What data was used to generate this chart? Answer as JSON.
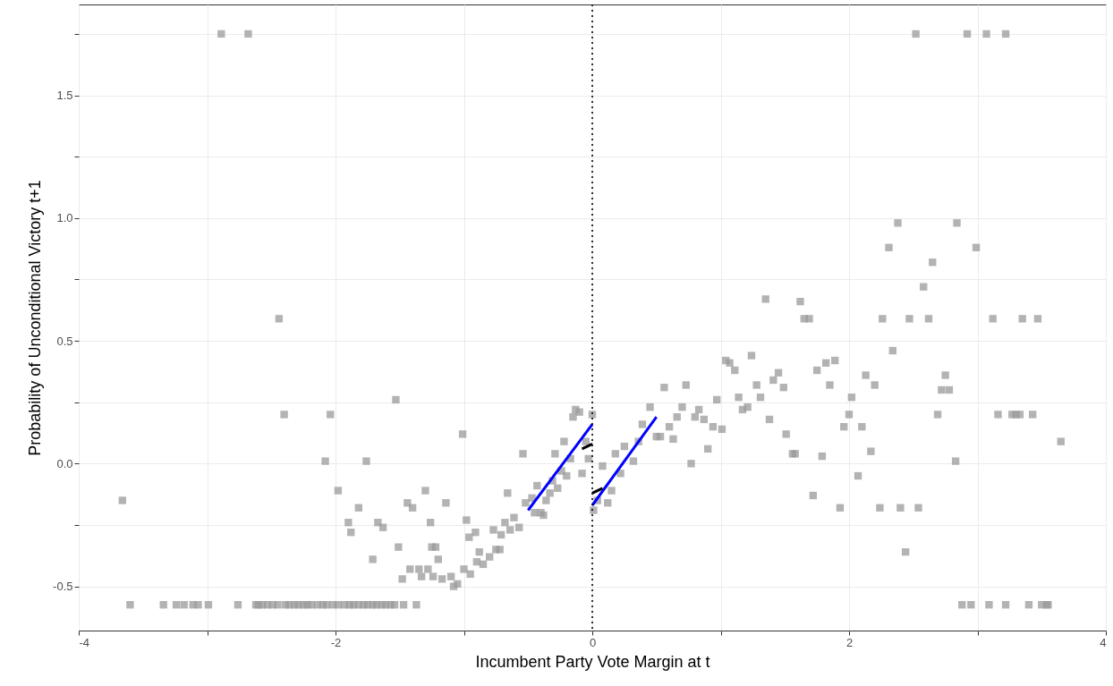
{
  "chart_data": {
    "type": "scatter",
    "xlabel": "Incumbent Party Vote Margin at t",
    "ylabel": "Probability of Unconditional Victory t+1",
    "xlim": [
      -4,
      4
    ],
    "ylim": [
      -0.68,
      1.87
    ],
    "xticks": [
      -4,
      {
        "value": -3,
        "label": null
      },
      -2,
      {
        "value": -1,
        "label": null
      },
      0,
      {
        "value": 1,
        "label": null
      },
      2,
      {
        "value": 3,
        "label": null
      },
      4
    ],
    "yticks": [
      -0.5,
      {
        "value": -0.25,
        "label": null
      },
      {
        "value": 0,
        "label": "0.0"
      },
      {
        "value": 0.25,
        "label": null
      },
      0.5,
      {
        "value": 0.75,
        "label": null
      },
      {
        "value": 1,
        "label": "1.0"
      },
      {
        "value": 1.25,
        "label": null
      },
      1.5,
      {
        "value": 1.75,
        "label": null
      }
    ],
    "grid": true,
    "marker": "square",
    "ref_lines": [
      {
        "axis": "x",
        "value": 0,
        "color": "#000000",
        "line_style": "dotted"
      }
    ],
    "series": [
      {
        "color": "#999999",
        "x": [
          -3.6,
          -3.34,
          -3.24,
          -3.18,
          -3.11,
          -3.07,
          -2.99,
          -2.76,
          -2.62,
          -2.6,
          -2.57,
          -2.53,
          -2.49,
          -2.45,
          -2.39,
          -2.36,
          -2.32,
          -2.29,
          -2.25,
          -2.22,
          -2.19,
          -2.14,
          -2.1,
          -2.07,
          -2.02,
          -1.98,
          -1.93,
          -1.89,
          -1.86,
          -1.82,
          -1.78,
          -1.75,
          -1.71,
          -1.68,
          -1.64,
          -1.61,
          -1.57,
          -1.54,
          -1.47,
          -1.37,
          -2.89,
          -2.68,
          2.52,
          2.92,
          3.07,
          3.22,
          -1.53,
          -2.4,
          -2.04,
          -2.08,
          -1.76,
          -3.66,
          -1.98,
          -1.3,
          -1.82,
          -1.44,
          -1.4,
          -1.9,
          -1.67,
          -1.63,
          -1.26,
          -1.88,
          -1.51,
          -1.71,
          -1.35,
          -1.42,
          -1.28,
          -1.48,
          -1.33,
          -1.24,
          -1.22,
          -2.44,
          -1.17,
          -1.1,
          -1.08,
          -1.05,
          -0.95,
          -1.0,
          -0.9,
          -0.85,
          -0.8,
          -0.75,
          -0.72,
          -0.88,
          -1.2,
          -1.25,
          -1.01,
          -1.14,
          -0.98,
          -0.91,
          -0.96,
          -0.77,
          -0.71,
          -0.68,
          -0.64,
          -0.61,
          -0.57,
          -0.66,
          -0.54,
          -0.52,
          -0.47,
          -0.43,
          -0.45,
          -0.4,
          -0.38,
          -0.36,
          -0.33,
          -0.31,
          -0.27,
          -0.24,
          -0.2,
          -0.29,
          -0.22,
          -0.17,
          -0.15,
          -0.13,
          -0.1,
          -0.08,
          -0.05,
          -0.03,
          0.0,
          0.08,
          0.04,
          0.01,
          0.12,
          0.15,
          0.22,
          0.18,
          0.25,
          0.32,
          0.36,
          0.39,
          0.45,
          0.5,
          0.53,
          0.56,
          0.6,
          0.63,
          0.66,
          0.7,
          0.73,
          0.77,
          0.8,
          0.83,
          0.87,
          0.9,
          0.94,
          0.97,
          1.01,
          2.58,
          1.35,
          1.62,
          1.65,
          1.69,
          2.26,
          2.47,
          2.62,
          2.34,
          1.04,
          1.07,
          1.11,
          1.24,
          1.45,
          1.41,
          1.28,
          1.49,
          1.75,
          1.82,
          1.89,
          1.85,
          2.13,
          2.2,
          1.14,
          1.17,
          1.21,
          1.31,
          1.38,
          1.51,
          1.56,
          1.58,
          1.79,
          2.02,
          2.0,
          1.96,
          2.1,
          2.17,
          2.07,
          1.72,
          1.93,
          2.24,
          2.4,
          2.54,
          2.44,
          2.84,
          2.38,
          2.99,
          2.31,
          2.65,
          3.12,
          3.35,
          3.47,
          2.75,
          2.72,
          2.78,
          2.69,
          3.16,
          3.27,
          3.3,
          3.33,
          3.43,
          3.65,
          2.83,
          2.88,
          2.95,
          3.09,
          3.22,
          3.4,
          3.5,
          3.54,
          3.55
        ],
        "values": [
          -0.575,
          -0.575,
          -0.575,
          -0.575,
          -0.575,
          -0.575,
          -0.575,
          -0.575,
          -0.575,
          -0.575,
          -0.575,
          -0.575,
          -0.575,
          -0.575,
          -0.575,
          -0.575,
          -0.575,
          -0.575,
          -0.575,
          -0.575,
          -0.575,
          -0.575,
          -0.575,
          -0.575,
          -0.575,
          -0.575,
          -0.575,
          -0.575,
          -0.575,
          -0.575,
          -0.575,
          -0.575,
          -0.575,
          -0.575,
          -0.575,
          -0.575,
          -0.575,
          -0.575,
          -0.575,
          -0.575,
          1.75,
          1.75,
          1.75,
          1.75,
          1.75,
          1.75,
          0.26,
          0.2,
          0.2,
          0.01,
          0.01,
          -0.15,
          -0.11,
          -0.11,
          -0.18,
          -0.16,
          -0.18,
          -0.24,
          -0.24,
          -0.26,
          -0.24,
          -0.28,
          -0.34,
          -0.39,
          -0.43,
          -0.43,
          -0.43,
          -0.47,
          -0.46,
          -0.46,
          -0.34,
          0.59,
          -0.47,
          -0.46,
          -0.5,
          -0.49,
          -0.45,
          -0.43,
          -0.4,
          -0.41,
          -0.38,
          -0.35,
          -0.35,
          -0.36,
          -0.39,
          -0.34,
          0.12,
          -0.16,
          -0.23,
          -0.28,
          -0.3,
          -0.27,
          -0.29,
          -0.24,
          -0.27,
          -0.22,
          -0.26,
          -0.12,
          0.04,
          -0.16,
          -0.14,
          -0.09,
          -0.2,
          -0.2,
          -0.21,
          -0.15,
          -0.12,
          -0.07,
          -0.1,
          -0.03,
          -0.05,
          0.04,
          0.09,
          0.02,
          0.19,
          0.22,
          0.21,
          -0.04,
          0.09,
          0.02,
          0.2,
          -0.01,
          -0.15,
          -0.19,
          -0.16,
          -0.11,
          -0.04,
          0.04,
          0.07,
          0.01,
          0.09,
          0.16,
          0.23,
          0.11,
          0.11,
          0.31,
          0.15,
          0.1,
          0.19,
          0.23,
          0.32,
          0.0,
          0.19,
          0.22,
          0.18,
          0.06,
          0.15,
          0.26,
          0.14,
          0.72,
          0.67,
          0.66,
          0.59,
          0.59,
          0.59,
          0.59,
          0.59,
          0.46,
          0.42,
          0.41,
          0.38,
          0.44,
          0.37,
          0.34,
          0.32,
          0.31,
          0.38,
          0.41,
          0.42,
          0.32,
          0.36,
          0.32,
          0.27,
          0.22,
          0.23,
          0.27,
          0.18,
          0.12,
          0.04,
          0.04,
          0.03,
          0.27,
          0.2,
          0.15,
          0.15,
          0.05,
          -0.05,
          -0.13,
          -0.18,
          -0.18,
          -0.18,
          -0.18,
          -0.36,
          0.98,
          0.98,
          0.88,
          0.88,
          0.82,
          0.59,
          0.59,
          0.59,
          0.36,
          0.3,
          0.3,
          0.2,
          0.2,
          0.2,
          0.2,
          0.2,
          0.2,
          0.09,
          0.01,
          -0.575,
          -0.575,
          -0.575,
          -0.575,
          -0.575,
          -0.575,
          -0.575,
          -0.575
        ]
      },
      {
        "type": "line",
        "marker": "none",
        "line_style": "solid",
        "color": "#0000ff",
        "x": [
          -0.5,
          0
        ],
        "values": [
          -0.19,
          0.16
        ]
      },
      {
        "type": "line",
        "marker": "none",
        "line_style": "solid",
        "color": "#0000ff",
        "x": [
          0,
          0.5
        ],
        "values": [
          -0.17,
          0.19
        ]
      },
      {
        "type": "line",
        "marker": "none",
        "line_style": "solid",
        "color": "#000000",
        "x": [
          -0.08,
          0
        ],
        "values": [
          0.06,
          0.08
        ]
      },
      {
        "type": "line",
        "marker": "none",
        "line_style": "solid",
        "color": "#000000",
        "x": [
          0,
          0.08
        ],
        "values": [
          -0.12,
          -0.1
        ]
      }
    ]
  }
}
